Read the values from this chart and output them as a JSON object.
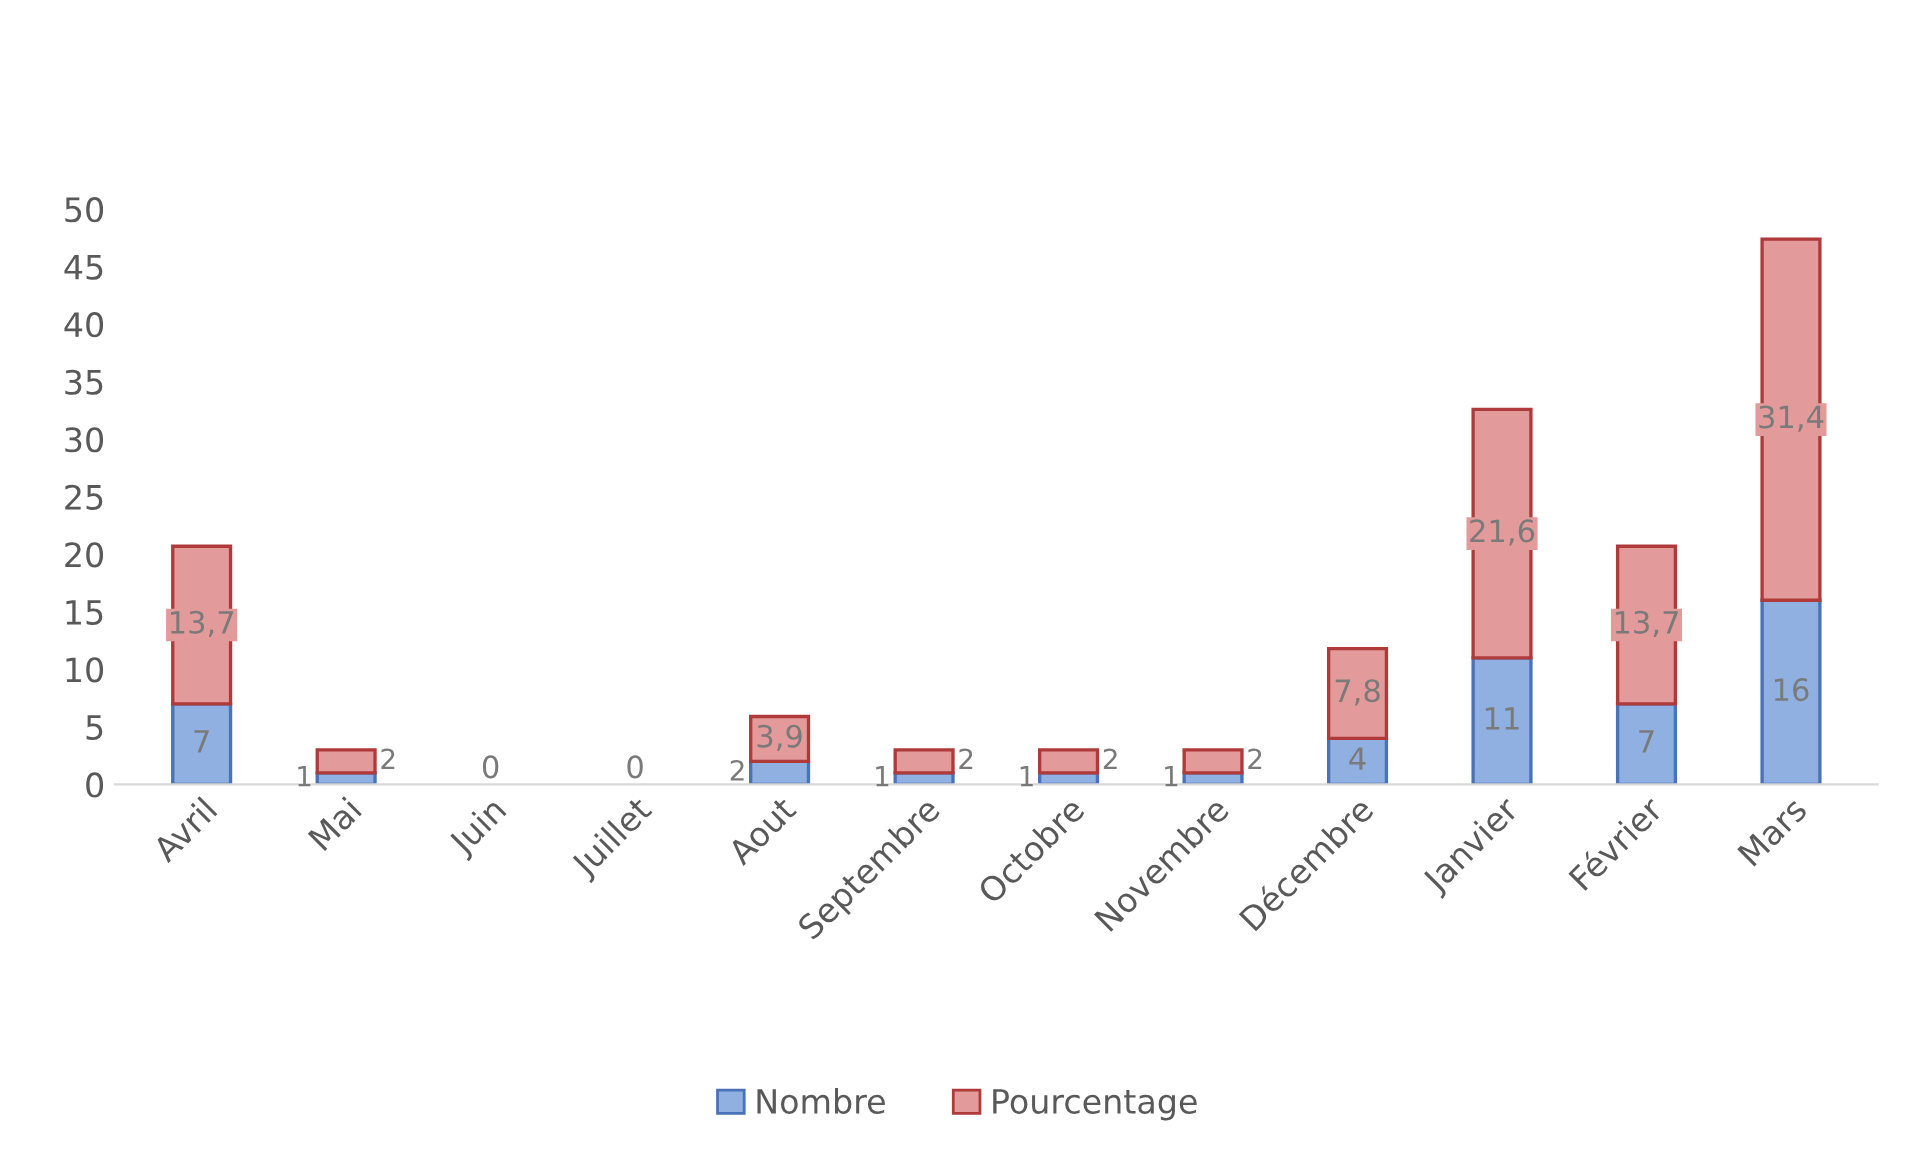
{
  "chart_data": {
    "type": "bar",
    "stacked": true,
    "categories": [
      "Avril",
      "Mai",
      "Juin",
      "Juillet",
      "Aout",
      "Septembre",
      "Octobre",
      "Novembre",
      "Décembre",
      "Janvier",
      "Février",
      "Mars"
    ],
    "series": [
      {
        "name": "Nombre",
        "color": "#8fb0e0",
        "values": [
          7,
          1,
          0,
          0,
          2,
          1,
          1,
          1,
          4,
          11,
          7,
          16
        ],
        "value_labels": [
          "7",
          "1",
          "0",
          "0",
          "2",
          "1",
          "1",
          "1",
          "4",
          "11",
          "7",
          "16"
        ]
      },
      {
        "name": "Pourcentage",
        "color": "#e39a9a",
        "values": [
          13.7,
          2,
          0,
          0,
          3.9,
          2,
          2,
          2,
          7.8,
          21.6,
          13.7,
          31.4
        ],
        "value_labels": [
          "13,7",
          "2",
          null,
          null,
          "3,9",
          "2",
          "2",
          "2",
          "7,8",
          "21,6",
          "13,7",
          "31,4"
        ]
      }
    ],
    "ylim": [
      0,
      50
    ],
    "yticks": [
      0,
      5,
      10,
      15,
      20,
      25,
      30,
      35,
      40,
      45,
      50
    ],
    "grid": false,
    "legend": "bottom"
  }
}
